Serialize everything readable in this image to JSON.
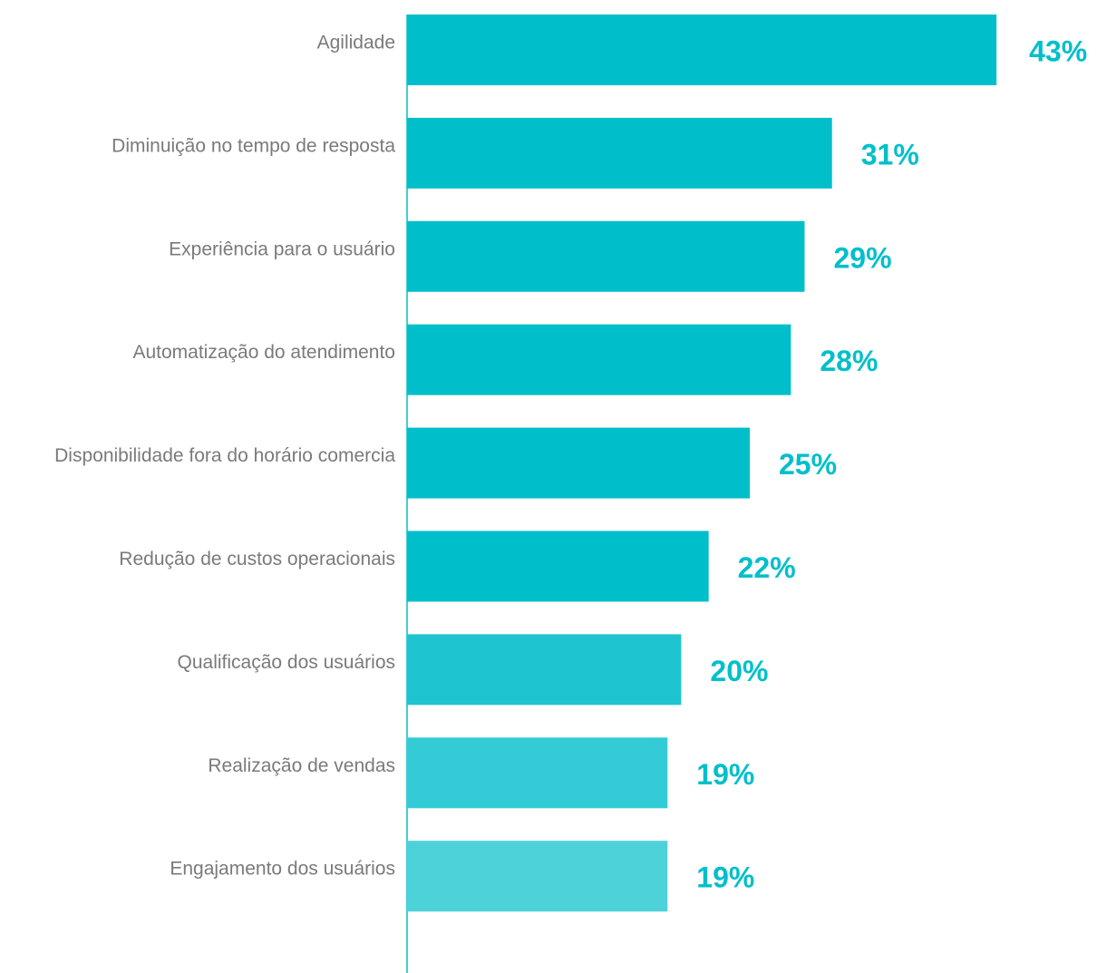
{
  "chart_data": {
    "type": "bar",
    "orientation": "horizontal",
    "categories": [
      "Agilidade",
      "Diminuição no tempo de resposta",
      "Experiência para o usuário",
      "Automatização do atendimento",
      "Disponibilidade fora do horário comercia",
      "Redução de custos operacionais",
      "Qualificação dos usuários",
      "Realização de vendas",
      "Engajamento dos usuários"
    ],
    "values": [
      43,
      31,
      29,
      28,
      25,
      22,
      20,
      19,
      19
    ],
    "value_labels": [
      "43%",
      "31%",
      "29%",
      "28%",
      "25%",
      "22%",
      "20%",
      "19%",
      "19%"
    ],
    "unit": "%",
    "xlim": [
      0,
      50
    ],
    "grid": false,
    "legend": "none",
    "colors": {
      "bars": [
        "#00bfcb",
        "#00bfcb",
        "#00bfcb",
        "#00bfcb",
        "#00bfcb",
        "#00bfcb",
        "#1ec5d0",
        "#33ccd6",
        "#4dd2da"
      ],
      "value_text": "#00bfcb",
      "category_text": "#7a7a7a",
      "axis": "#00bfcb"
    }
  }
}
